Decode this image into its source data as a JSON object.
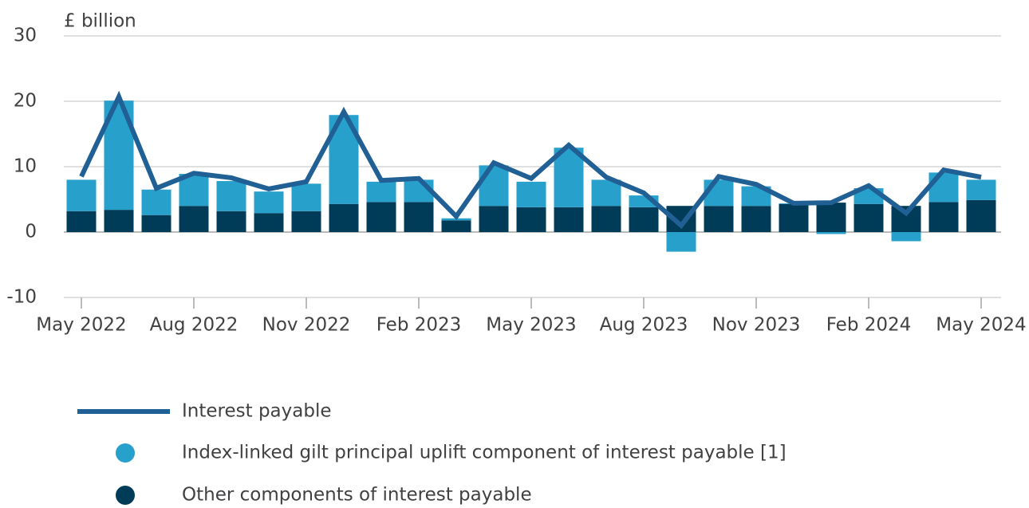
{
  "chart_data": {
    "type": "bar-line",
    "y_axis_label": "£ billion",
    "categories": [
      "May 2022",
      null,
      null,
      "Aug 2022",
      null,
      null,
      "Nov 2022",
      null,
      null,
      "Feb 2023",
      null,
      null,
      "May 2023",
      null,
      null,
      "Aug 2023",
      null,
      null,
      "Nov 2023",
      null,
      null,
      "Feb 2024",
      null,
      null,
      "May 2024"
    ],
    "series": [
      {
        "name": "Interest payable",
        "type": "line",
        "color": "#206095",
        "values": [
          8.5,
          20.7,
          6.7,
          9.0,
          8.3,
          6.6,
          7.7,
          18.4,
          7.9,
          8.2,
          2.4,
          10.6,
          8.2,
          13.3,
          8.4,
          6.0,
          1.0,
          8.5,
          7.3,
          4.4,
          4.5,
          7.1,
          2.9,
          9.5,
          8.4
        ]
      },
      {
        "name": "Index-linked gilt principal uplift component of interest payable [1]",
        "type": "bar",
        "color": "#27a0cc",
        "values": [
          4.8,
          16.7,
          3.9,
          4.9,
          4.6,
          3.3,
          4.2,
          13.6,
          3.1,
          3.4,
          0.3,
          6.2,
          3.9,
          9.1,
          4.0,
          1.8,
          -3.0,
          4.0,
          3.0,
          0.1,
          -0.3,
          2.4,
          -1.4,
          4.5,
          3.1
        ]
      },
      {
        "name": "Other components of interest payable",
        "type": "bar",
        "color": "#003c57",
        "values": [
          3.2,
          3.4,
          2.6,
          4.0,
          3.2,
          2.9,
          3.2,
          4.3,
          4.6,
          4.6,
          1.8,
          4.0,
          3.8,
          3.8,
          4.0,
          3.8,
          4.0,
          4.0,
          4.0,
          4.3,
          4.5,
          4.3,
          4.0,
          4.6,
          4.9
        ]
      }
    ],
    "ylim": [
      -10,
      30
    ],
    "yticks": [
      -10,
      0,
      10,
      20,
      30
    ],
    "grid": true
  }
}
